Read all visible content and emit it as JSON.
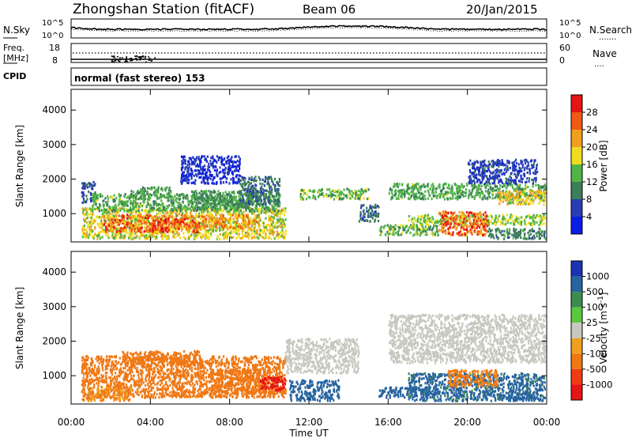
{
  "header": {
    "station": "Zhongshan Station (fitACF)",
    "beam": "Beam 06",
    "date": "20/Jan/2015"
  },
  "top_panel": {
    "left_label": "N.Sky",
    "left_ticks": [
      "10^5",
      "10^0"
    ],
    "right_ticks": [
      "10^5",
      "10^0"
    ],
    "right_label": "N.Search",
    "right_legend": "......."
  },
  "freq_panel": {
    "left_label_1": "Freq.",
    "left_label_2": "[MHz]",
    "left_ticks": [
      "18",
      "8"
    ],
    "right_ticks": [
      "60",
      "0"
    ],
    "right_label": "Nave",
    "right_legend": "...."
  },
  "cpid_panel": {
    "label": "CPID",
    "mode": "normal (fast stereo) 153"
  },
  "chart_data": [
    {
      "type": "heatmap",
      "parameter": "power",
      "ylabel": "Slant Range [km]",
      "ylim": [
        180,
        4600
      ],
      "yticks": [
        1000,
        2000,
        3000,
        4000
      ],
      "colorbar": {
        "label": "Power [dB]",
        "ticks": [
          4,
          8,
          12,
          16,
          20,
          24,
          28
        ],
        "colors": [
          "#0a1ee6",
          "#283cb4",
          "#3c7d5a",
          "#50b446",
          "#f0dc1e",
          "#f0a01e",
          "#f05a14",
          "#e61414"
        ]
      },
      "regions": [
        {
          "t": [
            0.5,
            1.2
          ],
          "r": [
            1350,
            1950
          ],
          "v": 7
        },
        {
          "t": [
            0.5,
            10.8
          ],
          "r": [
            300,
            1200
          ],
          "v": 18
        },
        {
          "t": [
            1.0,
            10.5
          ],
          "r": [
            1100,
            1600
          ],
          "v": 13
        },
        {
          "t": [
            1.5,
            6.5
          ],
          "r": [
            500,
            1000
          ],
          "v": 25
        },
        {
          "t": [
            3.0,
            5.0
          ],
          "r": [
            1500,
            1800
          ],
          "v": 12
        },
        {
          "t": [
            4.0,
            4.8
          ],
          "r": [
            500,
            900
          ],
          "v": 28
        },
        {
          "t": [
            6.0,
            9.5
          ],
          "r": [
            1200,
            1700
          ],
          "v": 11
        },
        {
          "t": [
            6.5,
            9.5
          ],
          "r": [
            600,
            1000
          ],
          "v": 22
        },
        {
          "t": [
            8.5,
            10.5
          ],
          "r": [
            1300,
            2100
          ],
          "v": 9
        },
        {
          "t": [
            11.5,
            15.0
          ],
          "r": [
            1450,
            1750
          ],
          "v": 14
        },
        {
          "t": [
            14.5,
            15.5
          ],
          "r": [
            800,
            1300
          ],
          "v": 9
        },
        {
          "t": [
            15.5,
            18.5
          ],
          "r": [
            400,
            700
          ],
          "v": 14
        },
        {
          "t": [
            16.0,
            23.9
          ],
          "r": [
            1450,
            1900
          ],
          "v": 13
        },
        {
          "t": [
            17.0,
            23.9
          ],
          "r": [
            700,
            1000
          ],
          "v": 16
        },
        {
          "t": [
            18.5,
            21.0
          ],
          "r": [
            400,
            1100
          ],
          "v": 26
        },
        {
          "t": [
            20.0,
            23.5
          ],
          "r": [
            1900,
            2600
          ],
          "v": 6
        },
        {
          "t": [
            21.5,
            23.9
          ],
          "r": [
            1300,
            1700
          ],
          "v": 19
        },
        {
          "t": [
            21.0,
            23.9
          ],
          "r": [
            300,
            600
          ],
          "v": 10
        },
        {
          "t": [
            5.5,
            8.5
          ],
          "r": [
            1900,
            2700
          ],
          "v": 4
        }
      ]
    },
    {
      "type": "heatmap",
      "parameter": "velocity",
      "ylabel": "Slant Range [km]",
      "ylim": [
        180,
        4600
      ],
      "yticks": [
        1000,
        2000,
        3000,
        4000
      ],
      "xlabel": "Time UT",
      "xlim": [
        0,
        24
      ],
      "xticks": [
        "00:00",
        "04:00",
        "08:00",
        "12:00",
        "16:00",
        "20:00",
        "00:00"
      ],
      "colorbar": {
        "label": "Velocity [m s^-1]",
        "ticks": [
          "1000",
          "500",
          "100",
          "25",
          "-25",
          "-100",
          "-500",
          "-1000"
        ],
        "colors": [
          "#1e32b4",
          "#2864a0",
          "#3c8c50",
          "#5ac83c",
          "#c8c8c0",
          "#f0a01e",
          "#f07814",
          "#f03c14",
          "#e61414"
        ]
      },
      "regions": [
        {
          "t": [
            0.5,
            10.8
          ],
          "r": [
            400,
            1600
          ],
          "v": -300
        },
        {
          "t": [
            2.5,
            6.5
          ],
          "r": [
            1300,
            1750
          ],
          "v": -200
        },
        {
          "t": [
            0.5,
            3.0
          ],
          "r": [
            300,
            700
          ],
          "v": -100
        },
        {
          "t": [
            7.0,
            10.5
          ],
          "r": [
            500,
            1200
          ],
          "v": -250
        },
        {
          "t": [
            9.5,
            10.8
          ],
          "r": [
            600,
            1000
          ],
          "v": -700
        },
        {
          "t": [
            10.8,
            14.5
          ],
          "r": [
            1100,
            2100
          ],
          "v": 0
        },
        {
          "t": [
            11.0,
            13.5
          ],
          "r": [
            300,
            900
          ],
          "v": 200
        },
        {
          "t": [
            15.5,
            18.5
          ],
          "r": [
            400,
            700
          ],
          "v": 150
        },
        {
          "t": [
            17.0,
            23.9
          ],
          "r": [
            300,
            1100
          ],
          "v": 120
        },
        {
          "t": [
            16.0,
            23.9
          ],
          "r": [
            1400,
            2800
          ],
          "v": 0
        },
        {
          "t": [
            19.0,
            21.5
          ],
          "r": [
            700,
            1200
          ],
          "v": -120
        },
        {
          "t": [
            22.0,
            23.5
          ],
          "r": [
            300,
            600
          ],
          "v": 400
        }
      ]
    }
  ]
}
